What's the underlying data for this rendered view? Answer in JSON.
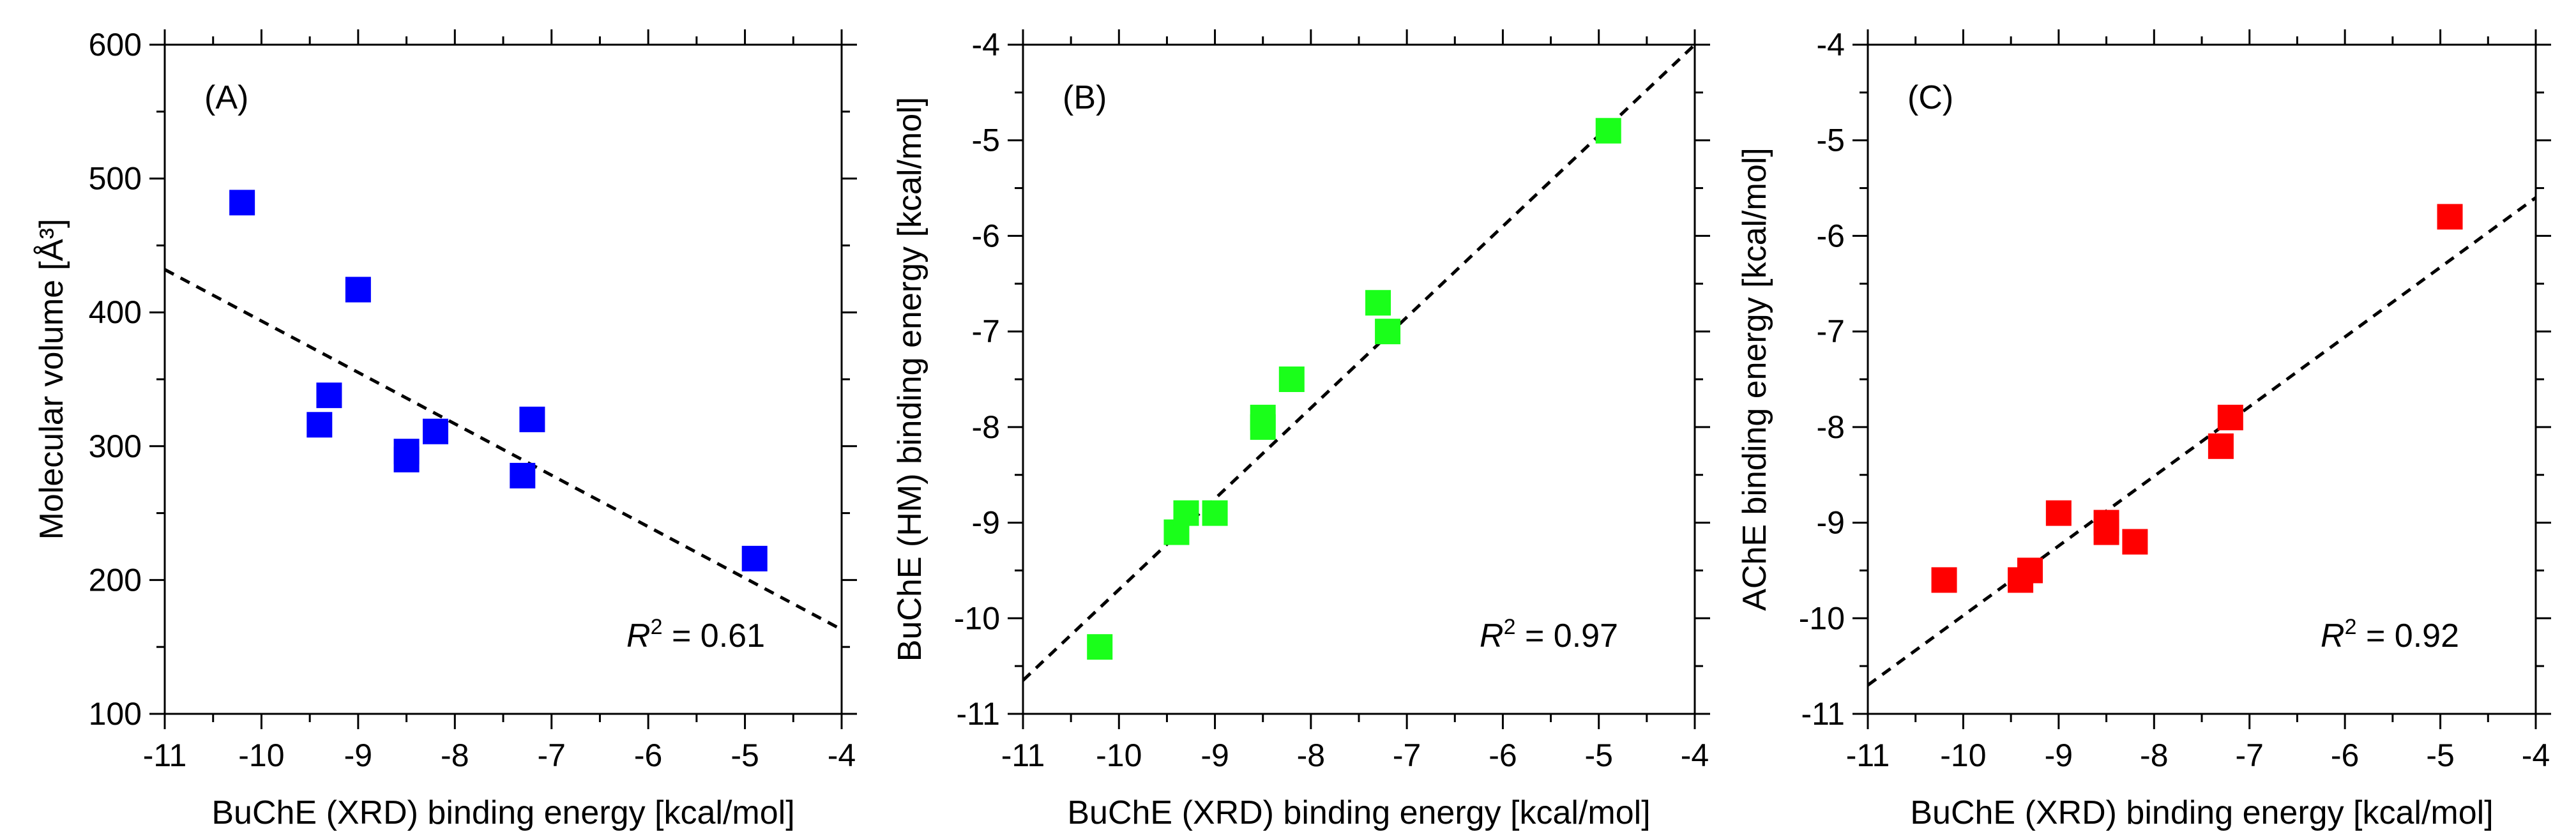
{
  "chart_data": [
    {
      "type": "scatter",
      "panel_label": "(A)",
      "xlabel": "BuChE (XRD) binding energy [kcal/mol]",
      "ylabel": "Molecular volume [Å³]",
      "xlim": [
        -11,
        -4
      ],
      "ylim": [
        100,
        600
      ],
      "xticks": [
        -11,
        -10,
        -9,
        -8,
        -7,
        -6,
        -5,
        -4
      ],
      "yticks": [
        100,
        200,
        300,
        400,
        500,
        600
      ],
      "x_tick_labels": [
        "-11",
        "-10",
        "-9",
        "-8",
        "-7",
        "-6",
        "-5",
        "-4"
      ],
      "y_tick_labels": [
        "100",
        "200",
        "300",
        "400",
        "500",
        "600"
      ],
      "marker_color": "#0000ff",
      "marker": "square",
      "points": [
        {
          "x": -10.2,
          "y": 482
        },
        {
          "x": -9.4,
          "y": 316
        },
        {
          "x": -9.3,
          "y": 338
        },
        {
          "x": -9.0,
          "y": 417
        },
        {
          "x": -8.5,
          "y": 290
        },
        {
          "x": -8.5,
          "y": 296
        },
        {
          "x": -8.2,
          "y": 311
        },
        {
          "x": -7.3,
          "y": 278
        },
        {
          "x": -7.2,
          "y": 320
        },
        {
          "x": -4.9,
          "y": 216
        }
      ],
      "fit_line": {
        "style": "dashed",
        "x": [
          -11,
          -4
        ],
        "y": [
          432,
          163
        ]
      },
      "r2_label": {
        "prefix": "R",
        "sup": "2",
        "value": " = 0.61"
      },
      "grid": false
    },
    {
      "type": "scatter",
      "panel_label": "(B)",
      "xlabel": "BuChE (XRD) binding energy [kcal/mol]",
      "ylabel": "BuChE (HM) binding energy [kcal/mol]",
      "xlim": [
        -11,
        -4
      ],
      "ylim": [
        -11,
        -4
      ],
      "xticks": [
        -11,
        -10,
        -9,
        -8,
        -7,
        -6,
        -5,
        -4
      ],
      "yticks": [
        -11,
        -10,
        -9,
        -8,
        -7,
        -6,
        -5,
        -4
      ],
      "x_tick_labels": [
        "-11",
        "-10",
        "-9",
        "-8",
        "-7",
        "-6",
        "-5",
        "-4"
      ],
      "y_tick_labels": [
        "-11",
        "-10",
        "-9",
        "-8",
        "-7",
        "-6",
        "-5",
        "-4"
      ],
      "marker_color": "#1aff1a",
      "marker": "square",
      "points": [
        {
          "x": -10.2,
          "y": -10.3
        },
        {
          "x": -9.4,
          "y": -9.1
        },
        {
          "x": -9.3,
          "y": -8.9
        },
        {
          "x": -9.0,
          "y": -8.9
        },
        {
          "x": -8.5,
          "y": -8.0
        },
        {
          "x": -8.5,
          "y": -7.9
        },
        {
          "x": -8.2,
          "y": -7.5
        },
        {
          "x": -7.3,
          "y": -6.7
        },
        {
          "x": -7.2,
          "y": -7.0
        },
        {
          "x": -4.9,
          "y": -4.9
        }
      ],
      "fit_line": {
        "style": "dashed",
        "x": [
          -11,
          -4
        ],
        "y": [
          -10.65,
          -4.0
        ]
      },
      "r2_label": {
        "prefix": "R",
        "sup": "2",
        "value": " = 0.97"
      },
      "grid": false
    },
    {
      "type": "scatter",
      "panel_label": "(C)",
      "xlabel": "BuChE (XRD) binding energy [kcal/mol]",
      "ylabel": "AChE binding energy [kcal/mol]",
      "xlim": [
        -11,
        -4
      ],
      "ylim": [
        -11,
        -4
      ],
      "xticks": [
        -11,
        -10,
        -9,
        -8,
        -7,
        -6,
        -5,
        -4
      ],
      "yticks": [
        -11,
        -10,
        -9,
        -8,
        -7,
        -6,
        -5,
        -4
      ],
      "x_tick_labels": [
        "-11",
        "-10",
        "-9",
        "-8",
        "-7",
        "-6",
        "-5",
        "-4"
      ],
      "y_tick_labels": [
        "-11",
        "-10",
        "-9",
        "-8",
        "-7",
        "-6",
        "-5",
        "-4"
      ],
      "marker_color": "#ff0000",
      "marker": "square",
      "points": [
        {
          "x": -10.2,
          "y": -9.6
        },
        {
          "x": -9.4,
          "y": -9.6
        },
        {
          "x": -9.3,
          "y": -9.5
        },
        {
          "x": -9.0,
          "y": -8.9
        },
        {
          "x": -8.5,
          "y": -9.0
        },
        {
          "x": -8.5,
          "y": -9.1
        },
        {
          "x": -8.2,
          "y": -9.2
        },
        {
          "x": -7.3,
          "y": -8.2
        },
        {
          "x": -7.2,
          "y": -7.9
        },
        {
          "x": -4.9,
          "y": -5.8
        }
      ],
      "fit_line": {
        "style": "dashed",
        "x": [
          -11,
          -4
        ],
        "y": [
          -10.7,
          -5.6
        ]
      },
      "r2_label": {
        "prefix": "R",
        "sup": "2",
        "value": " = 0.92"
      },
      "grid": false
    }
  ]
}
